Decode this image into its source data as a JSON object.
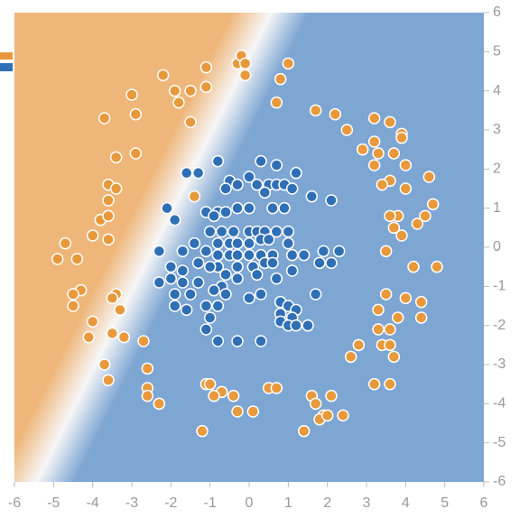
{
  "chart_data": {
    "type": "scatter",
    "xlim": [
      -6,
      6
    ],
    "ylim": [
      -6,
      6
    ],
    "xticks": [
      -6,
      -5,
      -4,
      -3,
      -2,
      -1,
      0,
      1,
      2,
      3,
      4,
      5,
      6
    ],
    "yticks": [
      -6,
      -5,
      -4,
      -3,
      -2,
      -1,
      0,
      1,
      2,
      3,
      4,
      5,
      6
    ],
    "series": [
      {
        "color": "#e8993c",
        "x": [
          -2.2,
          -1.1,
          -0.3,
          -0.2,
          -0.1,
          -0.1,
          1.0,
          0.8,
          -1.9,
          -1.5,
          -1.1,
          -3.0,
          -1.8,
          -2.9,
          -3.7,
          -1.5,
          0.7,
          1.7,
          2.2,
          3.2,
          3.6,
          2.5,
          3.9,
          3.9,
          3.2,
          2.9,
          3.3,
          3.7,
          3.2,
          4.0,
          4.6,
          3.6,
          3.4,
          4.0,
          -3.4,
          -2.9,
          -3.6,
          -3.4,
          -3.6,
          -1.4,
          4.7,
          3.8,
          3.6,
          4.5,
          4.3,
          -3.8,
          -3.6,
          -4.0,
          -3.6,
          -4.7,
          3.7,
          3.9,
          3.5,
          -4.4,
          -4.9,
          4.2,
          4.8,
          -4.3,
          -4.5,
          -3.4,
          -3.5,
          -4.5,
          -3.3,
          3.5,
          4.0,
          4.4,
          3.3,
          3.8,
          4.4,
          -4.0,
          -4.1,
          -3.5,
          -3.2,
          -2.7,
          3.6,
          3.3,
          2.8,
          3.4,
          3.6,
          3.7,
          2.6,
          -3.7,
          -2.6,
          -3.6,
          3.2,
          3.6,
          -2.6,
          -1.1,
          -1.0,
          -0.7,
          0.5,
          0.7,
          -2.6,
          -0.9,
          -0.4,
          1.6,
          2.1,
          -2.3,
          -2.3,
          1.7,
          -0.3,
          0.1,
          1.9,
          1.8,
          2.0,
          2.4,
          -1.2,
          1.4
        ],
        "values": [
          4.4,
          4.6,
          4.7,
          4.9,
          4.7,
          4.4,
          4.7,
          4.3,
          4.0,
          4.0,
          4.1,
          3.9,
          3.7,
          3.4,
          3.3,
          3.2,
          3.7,
          3.5,
          3.4,
          3.3,
          3.2,
          3.0,
          2.9,
          2.8,
          2.7,
          2.5,
          2.4,
          2.4,
          2.1,
          2.1,
          1.8,
          1.7,
          1.6,
          1.5,
          2.3,
          2.4,
          1.6,
          1.5,
          1.2,
          1.3,
          1.1,
          0.8,
          0.8,
          0.8,
          0.6,
          0.7,
          0.8,
          0.3,
          0.2,
          0.1,
          0.5,
          0.3,
          -0.1,
          -0.3,
          -0.3,
          -0.5,
          -0.5,
          -1.1,
          -1.2,
          -1.2,
          -1.3,
          -1.5,
          -1.6,
          -1.2,
          -1.3,
          -1.4,
          -1.6,
          -1.8,
          -1.8,
          -1.9,
          -2.3,
          -2.2,
          -2.3,
          -2.4,
          -2.1,
          -2.1,
          -2.5,
          -2.5,
          -2.5,
          -2.8,
          -2.8,
          -3.0,
          -3.1,
          -3.4,
          -3.5,
          -3.5,
          -3.6,
          -3.5,
          -3.5,
          -3.7,
          -3.6,
          -3.6,
          -3.8,
          -3.8,
          -3.8,
          -3.8,
          -3.8,
          -4.0,
          -4.0,
          -4.0,
          -4.2,
          -4.2,
          -4.3,
          -4.4,
          -4.3,
          -4.3,
          -4.7,
          -4.7
        ]
      },
      {
        "color": "#2f6fb5",
        "x": [
          -0.8,
          -1.6,
          -1.3,
          0.3,
          0.7,
          1.2,
          -0.5,
          -0.3,
          0.0,
          0.2,
          0.5,
          0.7,
          0.9,
          1.1,
          -0.6,
          0.4,
          1.6,
          2.1,
          -2.1,
          -1.1,
          -0.8,
          -0.6,
          -0.3,
          0.0,
          0.6,
          0.9,
          -1.9,
          -0.9,
          0.0,
          0.2,
          0.4,
          0.7,
          1.0,
          -1.0,
          -0.7,
          -0.4,
          -1.4,
          -0.8,
          -0.5,
          -0.3,
          0.0,
          0.3,
          0.5,
          1.0,
          -2.3,
          -1.7,
          -1.1,
          -0.8,
          -0.5,
          -0.3,
          0.0,
          0.3,
          0.6,
          1.1,
          1.4,
          1.9,
          2.3,
          -1.3,
          -0.8,
          -0.3,
          0.1,
          0.4,
          0.6,
          1.1,
          1.8,
          2.1,
          -2.0,
          -1.7,
          -1.0,
          -0.6,
          0.2,
          0.7,
          -2.0,
          -1.7,
          -1.3,
          -0.7,
          -0.3,
          -2.3,
          -1.9,
          -1.5,
          -0.9,
          -0.6,
          0.0,
          0.3,
          1.7,
          -1.1,
          -1.9,
          -1.6,
          -0.8,
          0.8,
          1.0,
          1.2,
          0.8,
          1.1,
          -1.0,
          -1.1,
          0.8,
          1.0,
          1.5,
          1.2,
          -0.8,
          -0.3,
          0.3
        ],
        "values": [
          2.2,
          1.9,
          1.9,
          2.2,
          2.1,
          1.9,
          1.7,
          1.6,
          1.8,
          1.6,
          1.6,
          1.6,
          1.6,
          1.5,
          1.5,
          1.4,
          1.3,
          1.2,
          1.0,
          0.9,
          0.9,
          0.9,
          1.0,
          1.0,
          1.0,
          1.0,
          0.7,
          0.8,
          0.4,
          0.4,
          0.4,
          0.4,
          0.4,
          0.4,
          0.4,
          0.4,
          0.1,
          0.1,
          0.1,
          0.1,
          0.1,
          0.2,
          0.2,
          0.1,
          -0.1,
          -0.1,
          -0.1,
          -0.2,
          -0.2,
          -0.2,
          -0.2,
          -0.2,
          -0.2,
          -0.2,
          -0.2,
          -0.1,
          -0.1,
          -0.4,
          -0.5,
          -0.5,
          -0.5,
          -0.4,
          -0.4,
          -0.6,
          -0.4,
          -0.4,
          -0.5,
          -0.6,
          -0.5,
          -0.7,
          -0.7,
          -0.8,
          -0.8,
          -0.9,
          -0.9,
          -1.0,
          -0.8,
          -0.9,
          -1.2,
          -1.2,
          -1.1,
          -1.2,
          -1.3,
          -1.2,
          -1.2,
          -1.5,
          -1.5,
          -1.6,
          -1.5,
          -1.4,
          -1.5,
          -1.6,
          -1.7,
          -1.8,
          -1.8,
          -2.1,
          -1.9,
          -2.0,
          -2.0,
          -2.0,
          -2.4,
          -2.4,
          -2.4
        ]
      }
    ]
  }
}
